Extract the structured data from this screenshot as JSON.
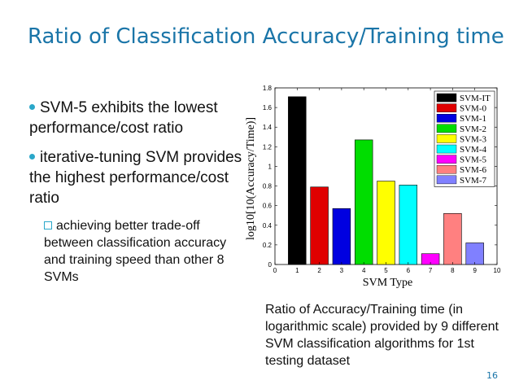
{
  "slide": {
    "title": "Ratio of Classification Accuracy/Training time",
    "page_number": "16",
    "caption": "Ratio of Accuracy/Training time (in logarithmic scale) provided by 9 different SVM classification algorithms for 1st testing dataset"
  },
  "bullets": [
    {
      "text": "SVM-5 exhibits the lowest performance/cost ratio"
    },
    {
      "text": "iterative-tuning SVM provides the highest performance/cost ratio"
    }
  ],
  "sub_bullet": {
    "text": "achieving better trade-off between classification accuracy and training speed than other 8 SVMs"
  },
  "chart_data": {
    "type": "bar",
    "title": "",
    "xlabel": "SVM Type",
    "ylabel": "log10[10(Accuracy/Time)]",
    "xlim": [
      0,
      10
    ],
    "ylim": [
      0,
      1.8
    ],
    "xticks": [
      "0",
      "1",
      "2",
      "3",
      "4",
      "5",
      "6",
      "7",
      "8",
      "9",
      "10"
    ],
    "yticks": [
      "0",
      "0.2",
      "0.4",
      "0.6",
      "0.8",
      "1",
      "1.2",
      "1.4",
      "1.6",
      "1.8"
    ],
    "grid": false,
    "legend_position": "top-right",
    "series": [
      {
        "name": "SVM-IT",
        "x": 1,
        "value": 1.71,
        "color": "#000000"
      },
      {
        "name": "SVM-0",
        "x": 2,
        "value": 0.79,
        "color": "#e00000"
      },
      {
        "name": "SVM-1",
        "x": 3,
        "value": 0.57,
        "color": "#0000e0"
      },
      {
        "name": "SVM-2",
        "x": 4,
        "value": 1.27,
        "color": "#00dd00"
      },
      {
        "name": "SVM-3",
        "x": 5,
        "value": 0.85,
        "color": "#ffff00"
      },
      {
        "name": "SVM-4",
        "x": 6,
        "value": 0.81,
        "color": "#00ffff"
      },
      {
        "name": "SVM-5",
        "x": 7,
        "value": 0.11,
        "color": "#ff00ff"
      },
      {
        "name": "SVM-6",
        "x": 8,
        "value": 0.52,
        "color": "#ff8080"
      },
      {
        "name": "SVM-7",
        "x": 9,
        "value": 0.22,
        "color": "#8080ff"
      }
    ]
  }
}
